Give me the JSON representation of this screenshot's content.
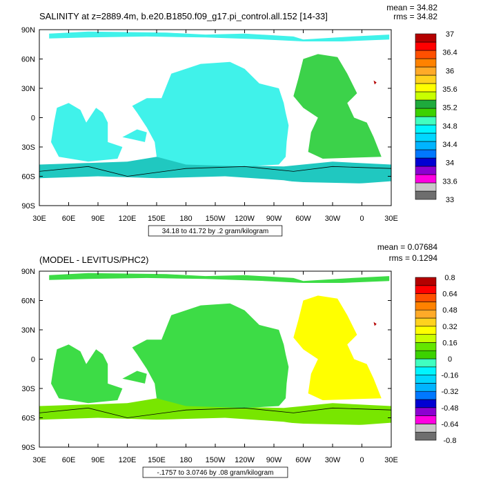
{
  "chart_data": [
    {
      "type": "heatmap",
      "title": "SALINITY at z=2889.4m, b.e20.B1850.f09_g17.pi_control.all.152 [14-33]",
      "stats": {
        "mean": "mean = 34.82",
        "rms": "rms = 34.82"
      },
      "x_ticks": [
        "30E",
        "60E",
        "90E",
        "120E",
        "150E",
        "180",
        "150W",
        "120W",
        "90W",
        "60W",
        "30W",
        "0",
        "30E"
      ],
      "y_ticks": [
        "90N",
        "60N",
        "30N",
        "0",
        "30S",
        "60S",
        "90S"
      ],
      "xlim": [
        30,
        390
      ],
      "ylim": [
        -90,
        90
      ],
      "range_label": "34.18 to 41.72 by .2 gram/kilogram",
      "colorbar": {
        "colors": [
          "#6e6e6e",
          "#c8c8c8",
          "#ff00e1",
          "#8c00d2",
          "#0000d2",
          "#0078ff",
          "#00b4ff",
          "#00d7ff",
          "#00f5ff",
          "#40ffc0",
          "#3cd200",
          "#1eaa3c",
          "#c8ff00",
          "#ffff00",
          "#ffd21e",
          "#ffaa28",
          "#ff8200",
          "#ff5000",
          "#ff0000",
          "#b40000"
        ],
        "labels": [
          "33",
          "33.6",
          "34",
          "34.4",
          "34.8",
          "35.2",
          "35.6",
          "36",
          "36.4",
          "37"
        ]
      },
      "regions": {
        "ocean": "#40f2ea",
        "atlantic": "#3cd24a",
        "southern": "#20c8c0",
        "red_sea": "#b40000"
      }
    },
    {
      "type": "heatmap",
      "title": "(MODEL - LEVITUS/PHC2)",
      "stats": {
        "mean": "mean = 0.07684",
        "rms": "rms = 0.1294"
      },
      "x_ticks": [
        "30E",
        "60E",
        "90E",
        "120E",
        "150E",
        "180",
        "150W",
        "120W",
        "90W",
        "60W",
        "30W",
        "0",
        "30E"
      ],
      "y_ticks": [
        "90N",
        "60N",
        "30N",
        "0",
        "30S",
        "60S",
        "90S"
      ],
      "xlim": [
        30,
        390
      ],
      "ylim": [
        -90,
        90
      ],
      "range_label": "-.1757 to 3.0746 by .08 gram/kilogram",
      "colorbar": {
        "colors": [
          "#6e6e6e",
          "#c8c8c8",
          "#ff00e1",
          "#8c00d2",
          "#0000d2",
          "#0078ff",
          "#00b4ff",
          "#00d7ff",
          "#00f5ff",
          "#40ffc0",
          "#3cd200",
          "#64e600",
          "#c8ff00",
          "#ffff00",
          "#ffd21e",
          "#ffaa28",
          "#ff8200",
          "#ff5000",
          "#ff0000",
          "#b40000"
        ],
        "labels": [
          "-0.8",
          "-0.64",
          "-0.48",
          "-0.32",
          "-0.16",
          "0",
          "0.16",
          "0.32",
          "0.48",
          "0.64",
          "0.8"
        ]
      },
      "regions": {
        "ocean": "#3ddc46",
        "atlantic": "#ffff00",
        "southern": "#78e600",
        "red_sea": "#b40000"
      }
    }
  ]
}
